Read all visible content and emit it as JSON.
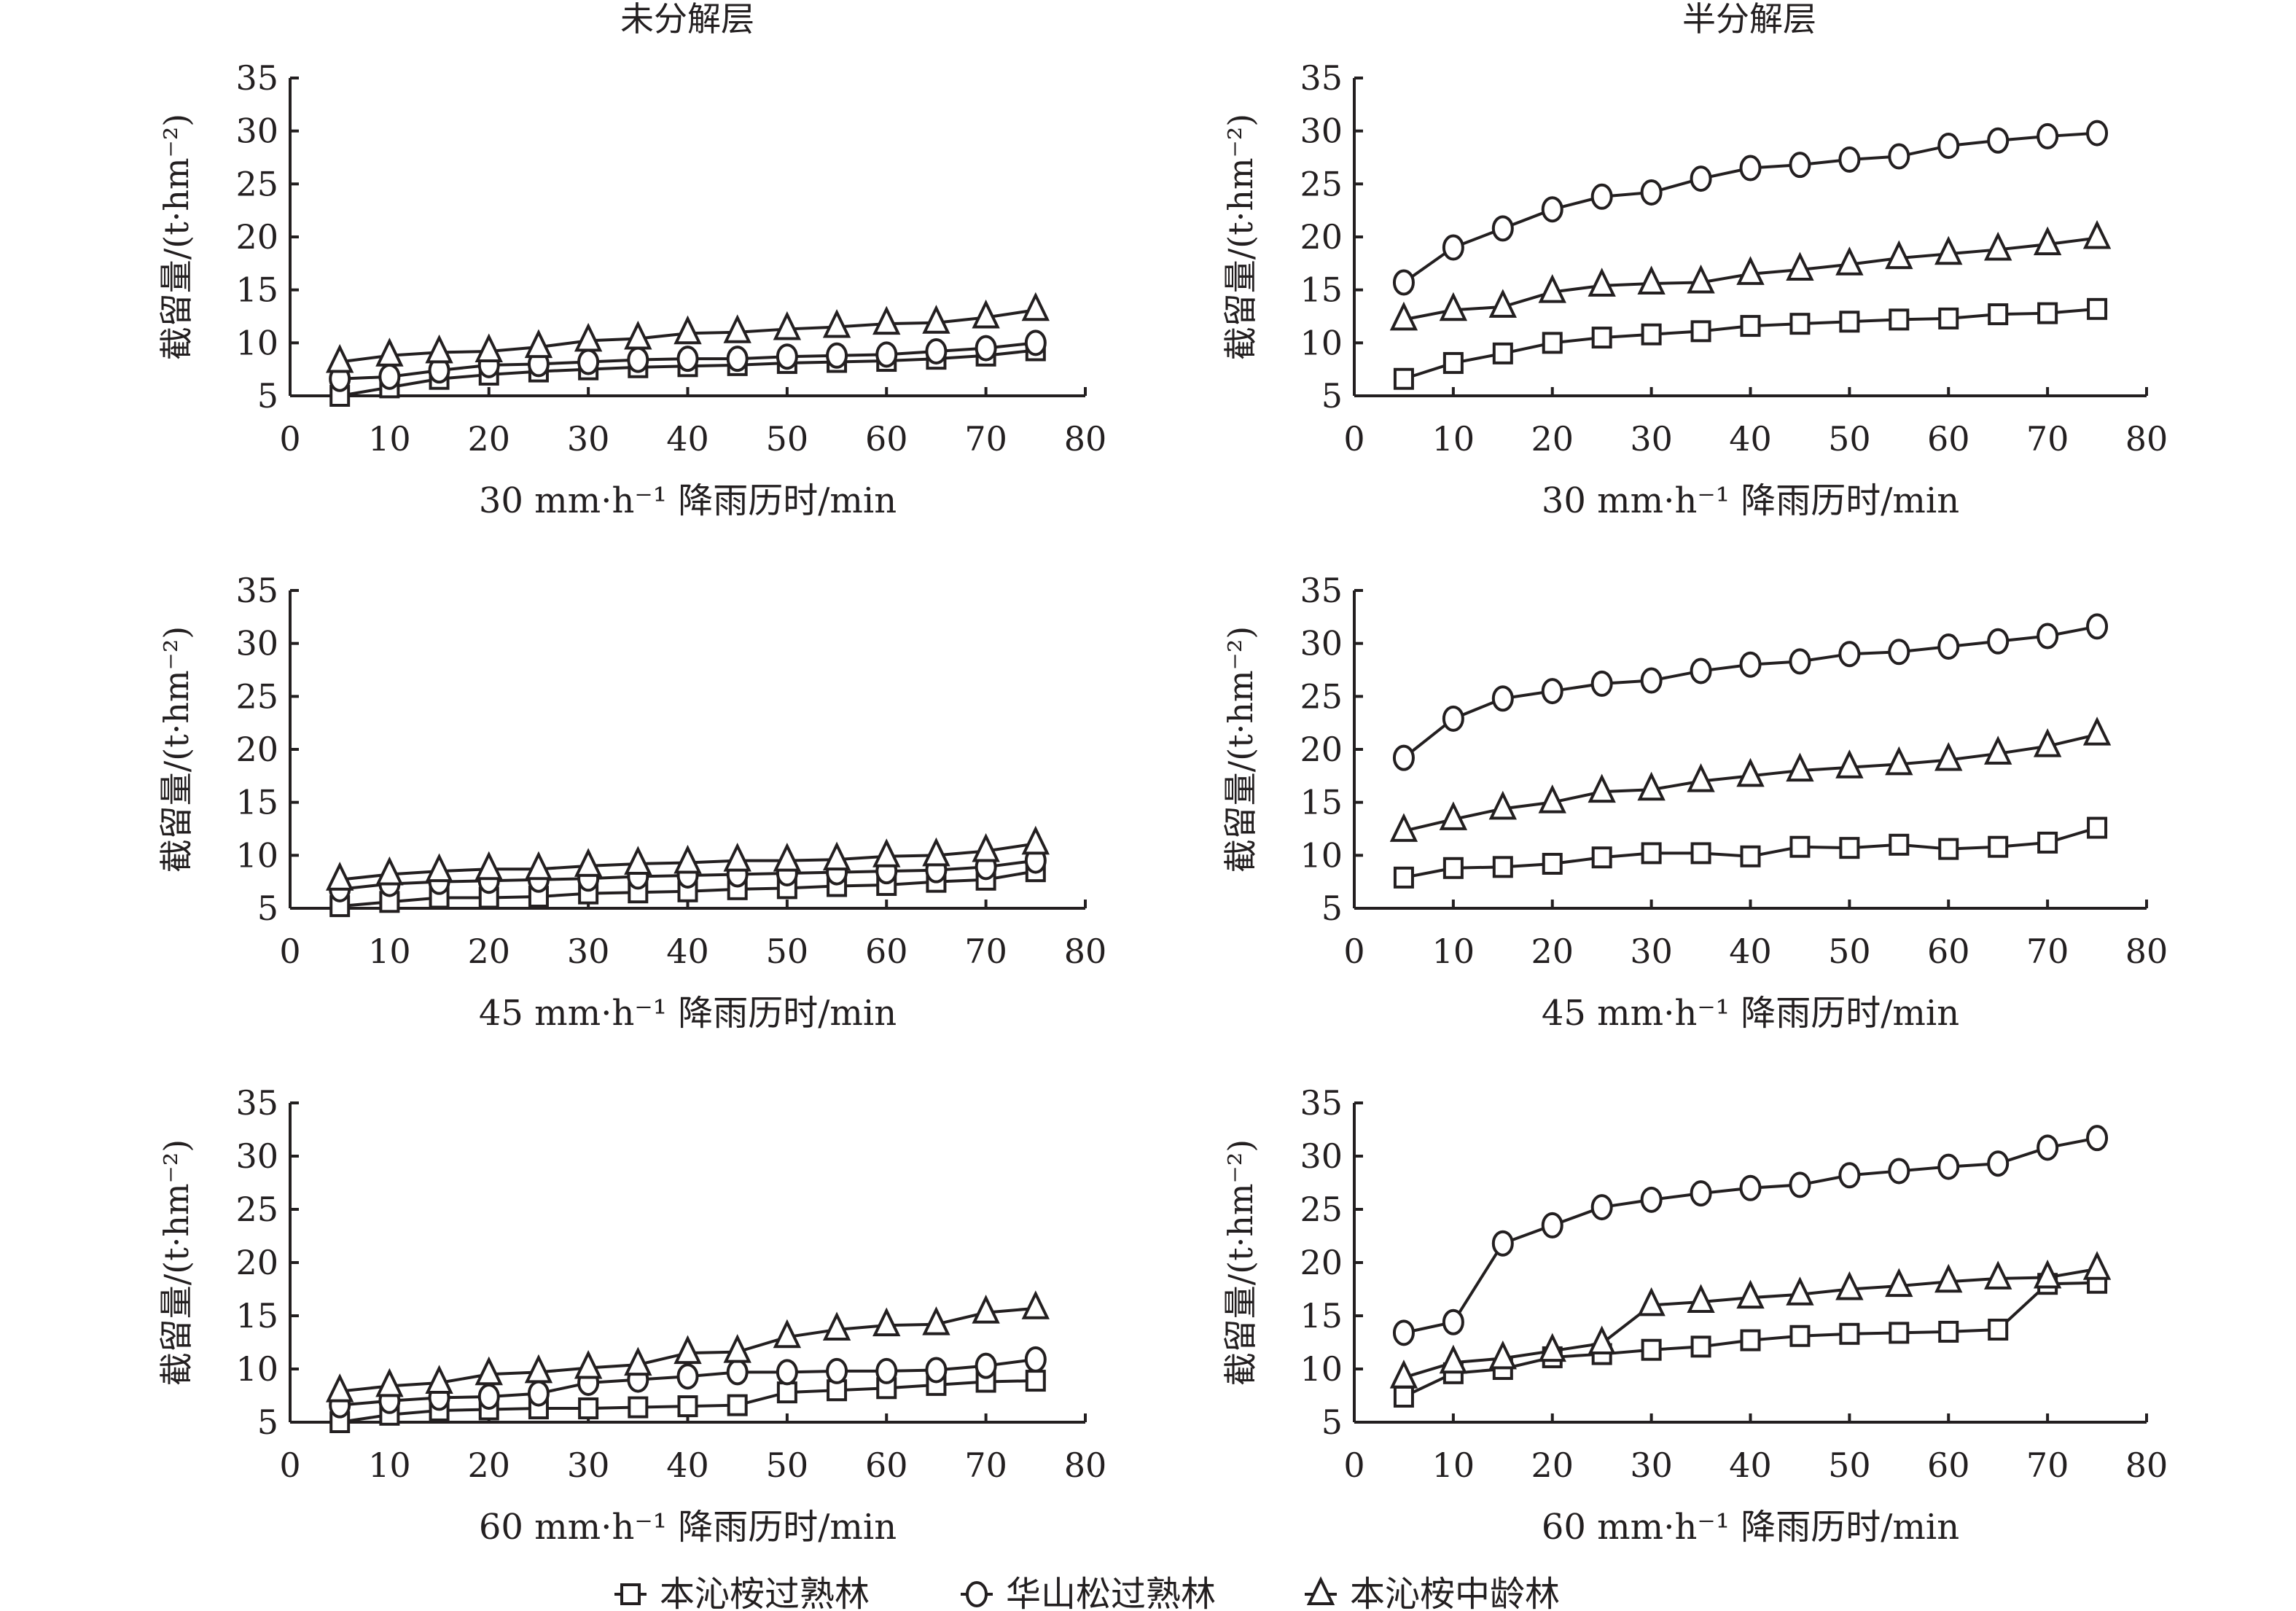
{
  "column_titles": [
    "未分解层",
    "半分解层"
  ],
  "legend": [
    {
      "label": "本沁桉过熟林",
      "marker": "square"
    },
    {
      "label": "华山松过熟林",
      "marker": "circle"
    },
    {
      "label": "本沁桉中龄林",
      "marker": "triangle"
    }
  ],
  "chart_data": [
    {
      "type": "line",
      "title": "未分解层",
      "xlabel": "30 mm·h⁻¹ 降雨历时/min",
      "ylabel": "截留量/(t·hm⁻²)",
      "xlim": [
        0,
        80
      ],
      "ylim": [
        5,
        35
      ],
      "xticks": [
        0,
        10,
        20,
        30,
        40,
        50,
        60,
        70,
        80
      ],
      "yticks": [
        5,
        10,
        15,
        20,
        25,
        30,
        35
      ],
      "x": [
        5,
        10,
        15,
        20,
        25,
        30,
        35,
        40,
        45,
        50,
        55,
        60,
        65,
        70,
        75
      ],
      "series": [
        {
          "name": "本沁桉过熟林",
          "values": [
            5.0,
            5.8,
            6.6,
            7.0,
            7.3,
            7.5,
            7.7,
            7.8,
            7.9,
            8.1,
            8.2,
            8.3,
            8.5,
            8.8,
            9.3
          ]
        },
        {
          "name": "华山松过熟林",
          "values": [
            6.6,
            6.8,
            7.4,
            7.9,
            8.0,
            8.2,
            8.4,
            8.5,
            8.5,
            8.7,
            8.8,
            8.9,
            9.2,
            9.5,
            10.0
          ]
        },
        {
          "name": "本沁桉中龄林",
          "values": [
            8.2,
            8.8,
            9.1,
            9.2,
            9.6,
            10.2,
            10.4,
            10.9,
            11.0,
            11.3,
            11.5,
            11.8,
            11.9,
            12.4,
            13.1
          ]
        }
      ]
    },
    {
      "type": "line",
      "title": "半分解层",
      "xlabel": "30 mm·h⁻¹ 降雨历时/min",
      "ylabel": "截留量/(t·hm⁻²)",
      "xlim": [
        0,
        80
      ],
      "ylim": [
        5,
        35
      ],
      "xticks": [
        0,
        10,
        20,
        30,
        40,
        50,
        60,
        70,
        80
      ],
      "yticks": [
        5,
        10,
        15,
        20,
        25,
        30,
        35
      ],
      "x": [
        5,
        10,
        15,
        20,
        25,
        30,
        35,
        40,
        45,
        50,
        55,
        60,
        65,
        70,
        75
      ],
      "series": [
        {
          "name": "本沁桉过熟林",
          "values": [
            6.6,
            8.1,
            9.0,
            10.0,
            10.5,
            10.8,
            11.1,
            11.6,
            11.8,
            12.0,
            12.2,
            12.3,
            12.7,
            12.8,
            13.2
          ]
        },
        {
          "name": "华山松过熟林",
          "values": [
            15.7,
            19.0,
            20.8,
            22.6,
            23.8,
            24.2,
            25.5,
            26.5,
            26.8,
            27.3,
            27.6,
            28.6,
            29.1,
            29.5,
            29.8
          ]
        },
        {
          "name": "本沁桉中龄林",
          "values": [
            12.2,
            13.1,
            13.4,
            14.8,
            15.4,
            15.6,
            15.7,
            16.5,
            16.9,
            17.4,
            18.0,
            18.4,
            18.8,
            19.3,
            19.9
          ]
        }
      ]
    },
    {
      "type": "line",
      "title": "",
      "xlabel": "45 mm·h⁻¹ 降雨历时/min",
      "ylabel": "截留量/(t·hm⁻²)",
      "xlim": [
        0,
        80
      ],
      "ylim": [
        5,
        35
      ],
      "xticks": [
        0,
        10,
        20,
        30,
        40,
        50,
        60,
        70,
        80
      ],
      "yticks": [
        5,
        10,
        15,
        20,
        25,
        30,
        35
      ],
      "x": [
        5,
        10,
        15,
        20,
        25,
        30,
        35,
        40,
        45,
        50,
        55,
        60,
        65,
        70,
        75
      ],
      "series": [
        {
          "name": "本沁桉过熟林",
          "values": [
            5.2,
            5.6,
            6.0,
            6.0,
            6.1,
            6.4,
            6.5,
            6.6,
            6.8,
            6.9,
            7.1,
            7.2,
            7.5,
            7.7,
            8.5
          ]
        },
        {
          "name": "华山松过熟林",
          "values": [
            6.8,
            7.3,
            7.5,
            7.6,
            7.7,
            7.8,
            8.0,
            8.1,
            8.2,
            8.3,
            8.4,
            8.5,
            8.6,
            8.9,
            9.5
          ]
        },
        {
          "name": "本沁桉中龄林",
          "values": [
            7.7,
            8.2,
            8.5,
            8.7,
            8.7,
            9.0,
            9.2,
            9.3,
            9.5,
            9.5,
            9.6,
            9.9,
            10.0,
            10.4,
            11.1
          ]
        }
      ]
    },
    {
      "type": "line",
      "title": "",
      "xlabel": "45 mm·h⁻¹ 降雨历时/min",
      "ylabel": "截留量/(t·hm⁻²)",
      "xlim": [
        0,
        80
      ],
      "ylim": [
        5,
        35
      ],
      "xticks": [
        0,
        10,
        20,
        30,
        40,
        50,
        60,
        70,
        80
      ],
      "yticks": [
        5,
        10,
        15,
        20,
        25,
        30,
        35
      ],
      "x": [
        5,
        10,
        15,
        20,
        25,
        30,
        35,
        40,
        45,
        50,
        55,
        60,
        65,
        70,
        75
      ],
      "series": [
        {
          "name": "本沁桉过熟林",
          "values": [
            7.9,
            8.8,
            8.9,
            9.2,
            9.8,
            10.2,
            10.2,
            9.9,
            10.8,
            10.7,
            11.0,
            10.6,
            10.8,
            11.2,
            12.6
          ]
        },
        {
          "name": "华山松过熟林",
          "values": [
            19.2,
            22.9,
            24.8,
            25.5,
            26.2,
            26.5,
            27.4,
            28.0,
            28.3,
            29.0,
            29.2,
            29.7,
            30.2,
            30.7,
            31.6
          ]
        },
        {
          "name": "本沁桉中龄林",
          "values": [
            12.3,
            13.4,
            14.4,
            15.0,
            16.0,
            16.2,
            17.0,
            17.5,
            18.0,
            18.3,
            18.6,
            19.0,
            19.6,
            20.3,
            21.4
          ]
        }
      ]
    },
    {
      "type": "line",
      "title": "",
      "xlabel": "60 mm·h⁻¹ 降雨历时/min",
      "ylabel": "截留量/(t·hm⁻²)",
      "xlim": [
        0,
        80
      ],
      "ylim": [
        5,
        35
      ],
      "xticks": [
        0,
        10,
        20,
        30,
        40,
        50,
        60,
        70,
        80
      ],
      "yticks": [
        5,
        10,
        15,
        20,
        25,
        30,
        35
      ],
      "x": [
        5,
        10,
        15,
        20,
        25,
        30,
        35,
        40,
        45,
        50,
        55,
        60,
        65,
        70,
        75
      ],
      "series": [
        {
          "name": "本沁桉过熟林",
          "values": [
            5.0,
            5.7,
            6.1,
            6.2,
            6.3,
            6.3,
            6.4,
            6.5,
            6.6,
            7.8,
            8.0,
            8.2,
            8.5,
            8.8,
            8.9
          ]
        },
        {
          "name": "华山松过熟林",
          "values": [
            6.6,
            7.0,
            7.3,
            7.4,
            7.7,
            8.7,
            9.0,
            9.3,
            9.7,
            9.7,
            9.8,
            9.8,
            9.9,
            10.3,
            10.9
          ]
        },
        {
          "name": "本沁桉中龄林",
          "values": [
            7.9,
            8.4,
            8.7,
            9.5,
            9.7,
            10.1,
            10.4,
            11.5,
            11.6,
            13.0,
            13.7,
            14.1,
            14.2,
            15.3,
            15.7
          ]
        }
      ]
    },
    {
      "type": "line",
      "title": "",
      "xlabel": "60 mm·h⁻¹ 降雨历时/min",
      "ylabel": "截留量/(t·hm⁻²)",
      "xlim": [
        0,
        80
      ],
      "ylim": [
        5,
        35
      ],
      "xticks": [
        0,
        10,
        20,
        30,
        40,
        50,
        60,
        70,
        80
      ],
      "yticks": [
        5,
        10,
        15,
        20,
        25,
        30,
        35
      ],
      "x": [
        5,
        10,
        15,
        20,
        25,
        30,
        35,
        40,
        45,
        50,
        55,
        60,
        65,
        70,
        75
      ],
      "series": [
        {
          "name": "本沁桉过熟林",
          "values": [
            7.4,
            9.6,
            10.0,
            11.1,
            11.4,
            11.8,
            12.1,
            12.7,
            13.1,
            13.3,
            13.4,
            13.5,
            13.7,
            18.0,
            18.1
          ]
        },
        {
          "name": "华山松过熟林",
          "values": [
            13.4,
            14.4,
            21.8,
            23.5,
            25.2,
            25.9,
            26.5,
            27.0,
            27.3,
            28.2,
            28.6,
            29.0,
            29.3,
            30.8,
            31.7
          ]
        },
        {
          "name": "本沁桉中龄林",
          "values": [
            9.2,
            10.6,
            11.0,
            11.7,
            12.4,
            16.0,
            16.3,
            16.7,
            17.0,
            17.5,
            17.8,
            18.2,
            18.5,
            18.6,
            19.4
          ]
        }
      ]
    }
  ]
}
